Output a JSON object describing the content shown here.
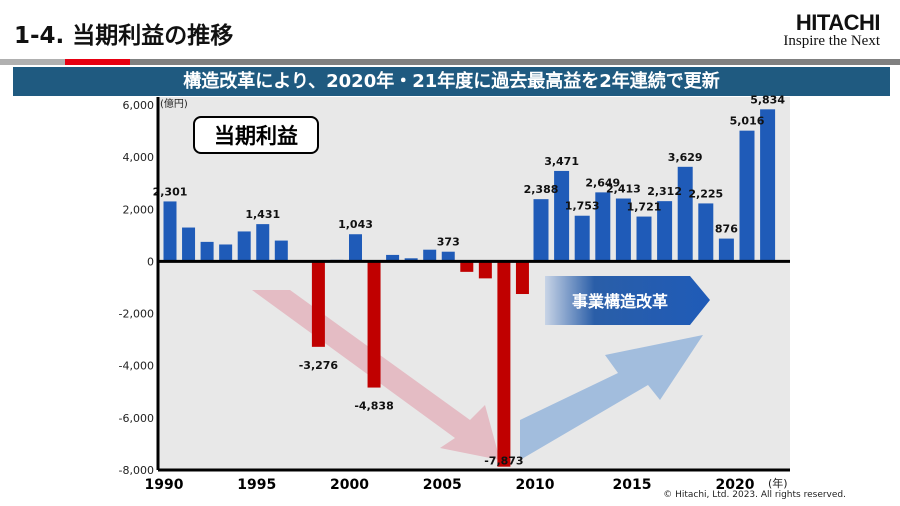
{
  "header": {
    "title": "1-4.  当期利益の推移",
    "logo_brand": "HITACHI",
    "logo_tagline": "Inspire the Next"
  },
  "banner": "構造改革により、2020年・21年度に過去最高益を2年連続で更新",
  "footer": {
    "copyright": "© Hitachi, Ltd. 2023. All rights reserved."
  },
  "colors": {
    "positive": "#1f5bb8",
    "negative": "#c00000",
    "banner": "#1f5a80"
  },
  "chart_data": {
    "type": "bar",
    "title": "当期利益",
    "ylabel": "(億円)",
    "xlabel": "(年)",
    "ylim": [
      -8000,
      6000
    ],
    "yticks": [
      6000,
      4000,
      2000,
      0,
      -2000,
      -4000,
      -6000,
      -8000
    ],
    "ytick_labels": [
      "6,000",
      "4,000",
      "2,000",
      "0",
      "-2,000",
      "-4,000",
      "-6,000",
      "-8,000"
    ],
    "xtick_labels": [
      "1990",
      "1995",
      "2000",
      "2005",
      "2010",
      "2015",
      "2020"
    ],
    "categories": [
      1990,
      1991,
      1992,
      1993,
      1994,
      1995,
      1996,
      1997,
      1998,
      1999,
      2000,
      2001,
      2002,
      2003,
      2004,
      2005,
      2006,
      2007,
      2008,
      2009,
      2010,
      2011,
      2012,
      2013,
      2014,
      2015,
      2016,
      2017,
      2018,
      2019,
      2020,
      2021
    ],
    "values": [
      2301,
      1300,
      750,
      650,
      1150,
      1431,
      800,
      50,
      -3276,
      60,
      1043,
      -4838,
      250,
      120,
      450,
      373,
      -400,
      -650,
      -7873,
      -1250,
      2388,
      3471,
      1753,
      2649,
      2413,
      1721,
      2312,
      3629,
      2225,
      876,
      5016,
      5834
    ],
    "data_labels": {
      "1990": "2,301",
      "1995": "1,431",
      "1998": "-3,276",
      "2000": "1,043",
      "2001": "-4,838",
      "2005": "373",
      "2008": "-7,873",
      "2010": "2,388",
      "2011": "3,471",
      "2012": "1,753",
      "2013": "2,649",
      "2014": "2,413",
      "2015": "1,721",
      "2016": "2,312",
      "2017": "3,629",
      "2018": "2,225",
      "2019": "876",
      "2020": "5,016",
      "2021": "5,834"
    },
    "annotations": [
      "事業構造改革"
    ],
    "grid": false
  }
}
